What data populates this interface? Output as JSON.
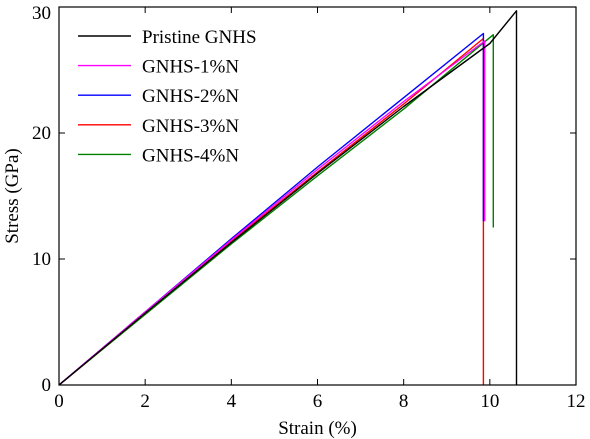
{
  "chart_data": {
    "type": "line",
    "title": "",
    "xlabel": "Strain (%)",
    "ylabel": "Stress (GPa)",
    "xlim": [
      0,
      12
    ],
    "ylim": [
      0,
      30
    ],
    "xticks": [
      0,
      2,
      4,
      6,
      8,
      10,
      12
    ],
    "yticks": [
      0,
      10,
      20,
      30
    ],
    "xtick_labels": [
      "0",
      "2",
      "4",
      "6",
      "8",
      "10",
      "12"
    ],
    "ytick_labels": [
      "0",
      "10",
      "20",
      "30"
    ],
    "grid": false,
    "legend_position": "top-left",
    "series": [
      {
        "name": "Pristine GNHS",
        "color": "#000000",
        "points": [
          [
            0,
            0
          ],
          [
            2,
            5.7
          ],
          [
            4,
            11.3
          ],
          [
            6,
            16.8
          ],
          [
            8,
            22.1
          ],
          [
            10,
            27.1
          ],
          [
            10.62,
            29.7
          ],
          [
            10.62,
            0
          ]
        ]
      },
      {
        "name": "GNHS-1%N",
        "color": "#ff00ff",
        "points": [
          [
            0,
            0
          ],
          [
            2,
            5.8
          ],
          [
            4,
            11.5
          ],
          [
            6,
            17.1
          ],
          [
            8,
            22.5
          ],
          [
            9.88,
            27.3
          ],
          [
            9.88,
            13.0
          ]
        ]
      },
      {
        "name": "GNHS-2%N",
        "color": "#0000ff",
        "points": [
          [
            0,
            0
          ],
          [
            2,
            5.8
          ],
          [
            4,
            11.6
          ],
          [
            6,
            17.3
          ],
          [
            8,
            22.8
          ],
          [
            9.85,
            27.9
          ],
          [
            9.85,
            13.0
          ]
        ]
      },
      {
        "name": "GNHS-3%N",
        "color": "#ff0000",
        "points": [
          [
            0,
            0
          ],
          [
            2,
            5.7
          ],
          [
            4,
            11.4
          ],
          [
            6,
            16.9
          ],
          [
            8,
            22.3
          ],
          [
            9.85,
            27.5
          ],
          [
            9.85,
            0
          ]
        ]
      },
      {
        "name": "GNHS-4%N",
        "color": "#008000",
        "points": [
          [
            0,
            0
          ],
          [
            2,
            5.6
          ],
          [
            4,
            11.2
          ],
          [
            6,
            16.6
          ],
          [
            8,
            21.9
          ],
          [
            10.08,
            27.8
          ],
          [
            10.08,
            12.5
          ]
        ]
      }
    ]
  }
}
